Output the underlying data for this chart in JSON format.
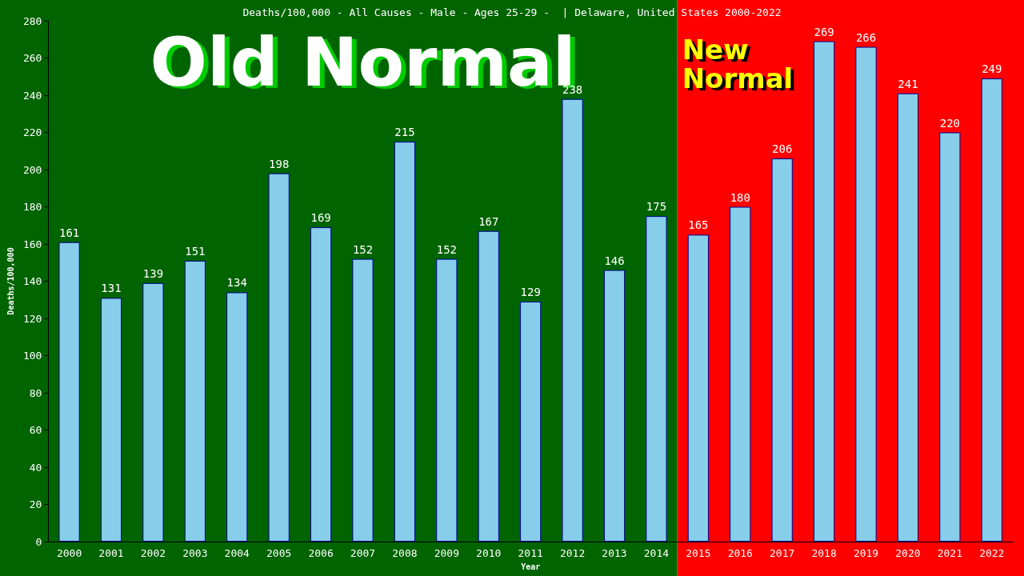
{
  "chart_data": {
    "type": "bar",
    "title": "Deaths/100,000 - All Causes - Male - Ages 25-29 -  | Delaware, United States 2000-2022",
    "xlabel": "Year",
    "ylabel": "Deaths/100,000",
    "categories": [
      "2000",
      "2001",
      "2002",
      "2003",
      "2004",
      "2005",
      "2006",
      "2007",
      "2008",
      "2009",
      "2010",
      "2011",
      "2012",
      "2013",
      "2014",
      "2015",
      "2016",
      "2017",
      "2018",
      "2019",
      "2020",
      "2021",
      "2022"
    ],
    "values": [
      161,
      131,
      139,
      151,
      134,
      198,
      169,
      152,
      215,
      152,
      167,
      129,
      238,
      146,
      175,
      165,
      180,
      206,
      269,
      266,
      241,
      220,
      249
    ],
    "color": "#87ceeb",
    "data_labels": true,
    "grid": false,
    "ylim": [
      0,
      280
    ],
    "yticks": [
      0,
      20,
      40,
      60,
      80,
      100,
      120,
      140,
      160,
      180,
      200,
      220,
      240,
      260,
      280
    ],
    "bands": [
      {
        "axis": "x",
        "from": "2000",
        "to": "2014",
        "color": "#006400",
        "label": "Old Normal"
      },
      {
        "axis": "x",
        "from": "2015",
        "to": "2022",
        "color": "#ff0000",
        "label": "New Normal"
      }
    ]
  }
}
